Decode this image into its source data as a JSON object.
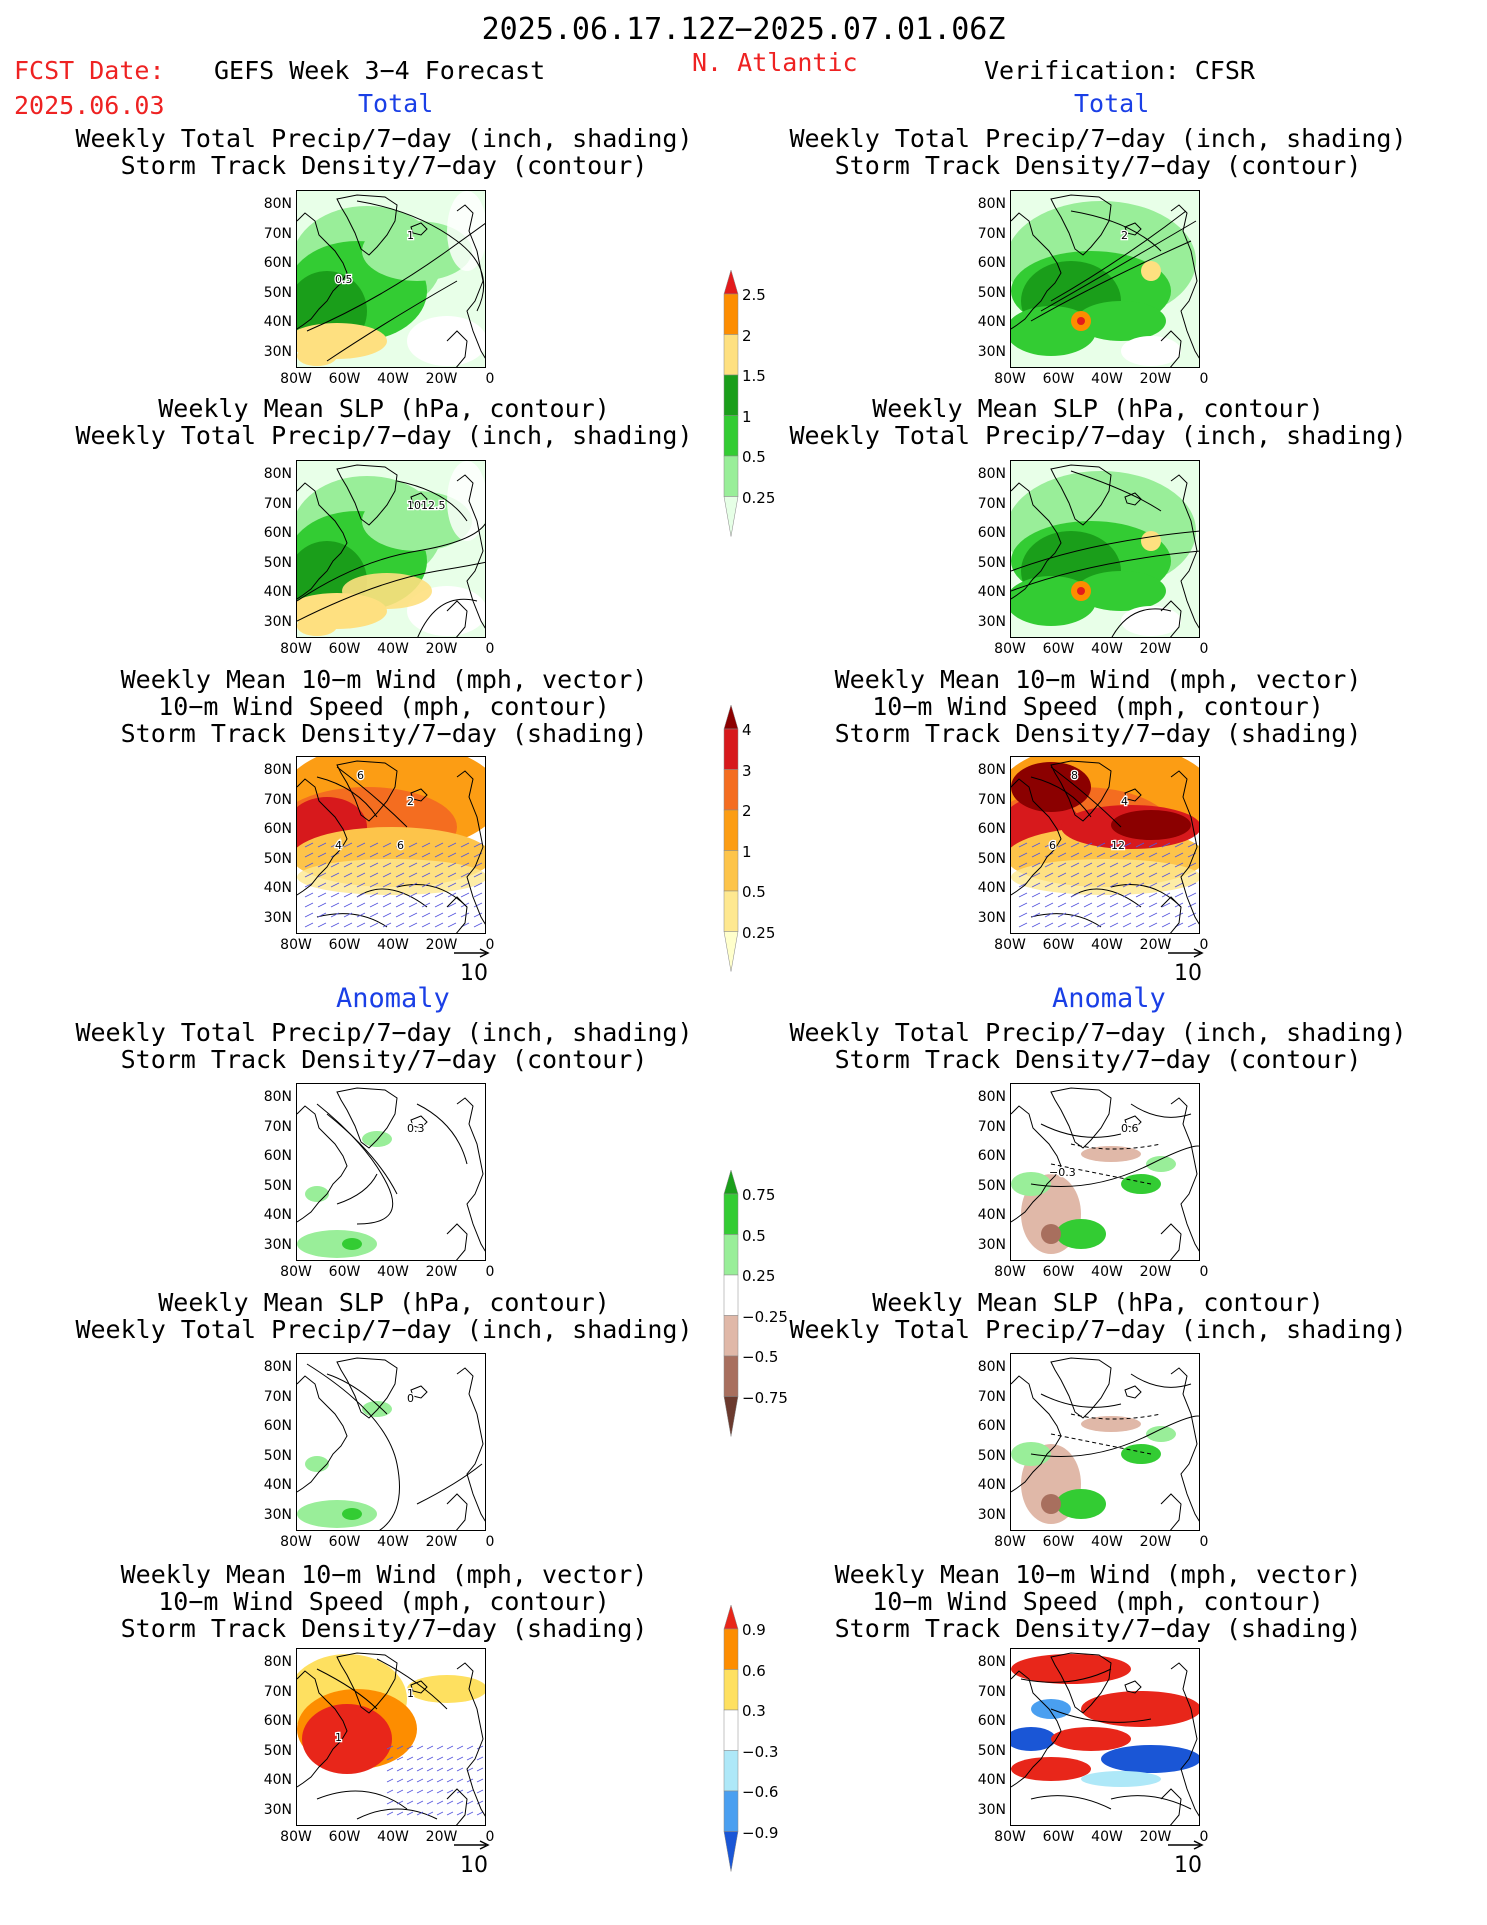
{
  "header": {
    "period": "2025.06.17.12Z−2025.07.01.06Z",
    "fcst_date_label": "FCST Date:",
    "fcst_date": "2025.06.03",
    "forecast": "GEFS Week 3−4 Forecast",
    "region": "N. Atlantic",
    "verification": "Verification: CFSR"
  },
  "sections": {
    "total": "Total",
    "anomaly": "Anomaly"
  },
  "panel_titles": {
    "precip_storm": [
      "Weekly Total Precip/7−day (inch, shading)",
      "Storm Track Density/7−day (contour)"
    ],
    "slp_precip": [
      "Weekly Mean SLP (hPa, contour)",
      "Weekly Total Precip/7−day (inch, shading)"
    ],
    "wind_storm": [
      "Weekly Mean 10−m Wind (mph, vector)",
      "10−m Wind Speed (mph, contour)",
      "Storm Track Density/7−day (shading)"
    ]
  },
  "axes": {
    "lat_ticks": [
      "80N",
      "70N",
      "60N",
      "50N",
      "40N",
      "30N"
    ],
    "lon_ticks": [
      "80W",
      "60W",
      "40W",
      "20W",
      "0"
    ]
  },
  "vector_ref": "10",
  "contour_labels": {
    "fcst_total_precip": [
      "1",
      "0.5"
    ],
    "cfsr_total_precip": [
      "2"
    ],
    "fcst_total_slp": [
      "1012.5"
    ],
    "fcst_total_wind": [
      "2",
      "4",
      "6",
      "6"
    ],
    "cfsr_total_wind": [
      "4",
      "6",
      "8",
      "12"
    ],
    "fcst_anom_precip": [
      "0.3"
    ],
    "cfsr_anom_precip": [
      "0.6",
      "−0.3"
    ],
    "fcst_anom_slp": [
      "0"
    ],
    "fcst_anom_wind": [
      "1",
      "1"
    ]
  },
  "colorbars": {
    "total_precip": {
      "labels": [
        "2.5",
        "2",
        "1.5",
        "1",
        "0.5",
        "0.25"
      ],
      "colors": [
        "#e31a1c",
        "#fd8d00",
        "#fee080",
        "#1a9e1a",
        "#33cc33",
        "#99ee99",
        "#e6ffe6"
      ]
    },
    "total_storm": {
      "labels": [
        "4",
        "3",
        "2",
        "1",
        "0.5",
        "0.25"
      ],
      "colors": [
        "#8b0000",
        "#d7191c",
        "#f46d20",
        "#fc9d14",
        "#fdc44a",
        "#fee890",
        "#ffffcc"
      ]
    },
    "anom_precip": {
      "labels": [
        "0.75",
        "0.5",
        "0.25",
        "−0.25",
        "−0.5",
        "−0.75"
      ],
      "colors": [
        "#1a9e1a",
        "#33cc33",
        "#99ee99",
        "#ffffff",
        "#e0b8a8",
        "#a86f5e",
        "#6b3a2e"
      ]
    },
    "anom_storm": {
      "labels": [
        "0.9",
        "0.6",
        "0.3",
        "−0.3",
        "−0.6",
        "−0.9"
      ],
      "colors": [
        "#e8261a",
        "#fd8d00",
        "#fee060",
        "#ffffff",
        "#aee8f8",
        "#4a9ff0",
        "#1a56d6"
      ]
    }
  }
}
